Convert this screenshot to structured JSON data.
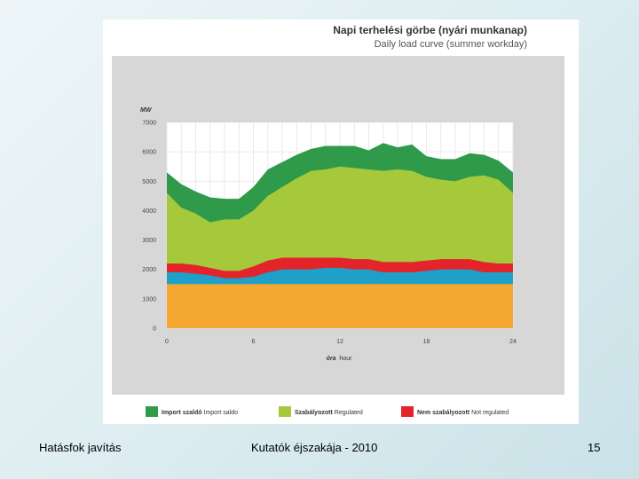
{
  "footer": {
    "left": "Hatásfok javítás",
    "center": "Kutatók éjszakája - 2010",
    "page_number": "15"
  },
  "colors": {
    "import": "#2e9a4a",
    "regulated": "#a6c93c",
    "not_regulated": "#e3242b",
    "cyan_band": "#1ea0c8",
    "base": "#f4a832",
    "plot_bg": "#ffffff",
    "panel_bg": "#d7d7d7"
  },
  "chart_data": {
    "type": "area",
    "title": "Napi terhelési görbe (nyári munkanap)",
    "subtitle": "Daily load curve (summer workday)",
    "ylabel": "MW",
    "xlabel_hu": "óra",
    "xlabel_en": "hour",
    "ylim": [
      0,
      7000
    ],
    "xlim": [
      0,
      24
    ],
    "y_ticks": [
      0,
      1000,
      2000,
      3000,
      4000,
      5000,
      6000,
      7000
    ],
    "x_ticks": [
      0,
      6,
      12,
      18,
      24
    ],
    "grid": true,
    "legend_position": "bottom",
    "x": [
      0,
      1,
      2,
      3,
      4,
      5,
      6,
      7,
      8,
      9,
      10,
      11,
      12,
      13,
      14,
      15,
      16,
      17,
      18,
      19,
      20,
      21,
      22,
      23,
      24
    ],
    "series": [
      {
        "name": "",
        "color_key": "base",
        "values": [
          1500,
          1500,
          1500,
          1500,
          1500,
          1500,
          1500,
          1500,
          1500,
          1500,
          1500,
          1500,
          1500,
          1500,
          1500,
          1500,
          1500,
          1500,
          1500,
          1500,
          1500,
          1500,
          1500,
          1500,
          1500
        ]
      },
      {
        "name": "",
        "color_key": "cyan_band",
        "values": [
          1900,
          1900,
          1850,
          1800,
          1700,
          1700,
          1750,
          1900,
          2000,
          2000,
          2000,
          2050,
          2050,
          2000,
          2000,
          1900,
          1900,
          1900,
          1950,
          2000,
          2000,
          2000,
          1900,
          1900,
          1900
        ]
      },
      {
        "name_hu": "Nem szabályozott",
        "name_en": "Not regulated",
        "color_key": "not_regulated",
        "values": [
          2200,
          2200,
          2150,
          2050,
          1950,
          1950,
          2100,
          2300,
          2400,
          2400,
          2400,
          2400,
          2400,
          2350,
          2350,
          2250,
          2250,
          2250,
          2300,
          2350,
          2350,
          2350,
          2250,
          2200,
          2200
        ]
      },
      {
        "name_hu": "Szabályozott",
        "name_en": "Regulated",
        "color_key": "regulated",
        "values": [
          4600,
          4100,
          3900,
          3600,
          3700,
          3700,
          4000,
          4500,
          4800,
          5100,
          5350,
          5400,
          5500,
          5450,
          5400,
          5350,
          5400,
          5350,
          5150,
          5050,
          5000,
          5150,
          5200,
          5050,
          4600
        ]
      },
      {
        "name_hu": "Import szaldó",
        "name_en": "Import saldo",
        "color_key": "import",
        "values": [
          5300,
          4900,
          4650,
          4450,
          4400,
          4400,
          4800,
          5400,
          5650,
          5900,
          6100,
          6200,
          6200,
          6200,
          6050,
          6300,
          6150,
          6250,
          5850,
          5750,
          5750,
          5950,
          5900,
          5700,
          5300
        ]
      }
    ],
    "legend": [
      {
        "hu": "Import szaldó",
        "en": "Import saldo",
        "color_key": "import"
      },
      {
        "hu": "Szabályozott",
        "en": "Regulated",
        "color_key": "regulated"
      },
      {
        "hu": "Nem szabályozott",
        "en": "Not regulated",
        "color_key": "not_regulated"
      }
    ]
  }
}
